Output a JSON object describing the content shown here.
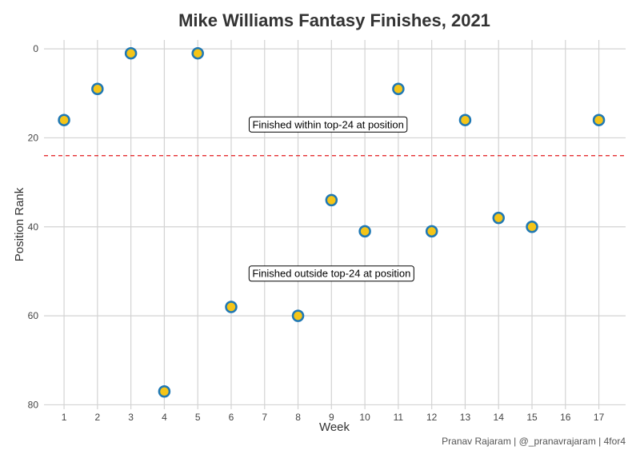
{
  "chart_data": {
    "type": "scatter",
    "title": "Mike Williams Fantasy Finishes, 2021",
    "xlabel": "Week",
    "ylabel": "Position Rank",
    "caption": "Pranav Rajaram | @_pranavrajaram | 4for4",
    "x_ticks": [
      1,
      2,
      3,
      4,
      5,
      6,
      7,
      8,
      9,
      10,
      11,
      12,
      13,
      14,
      15,
      16,
      17
    ],
    "y_ticks": [
      0,
      20,
      40,
      60,
      80
    ],
    "xlim": [
      0.4,
      17.8
    ],
    "ylim": [
      81,
      -2
    ],
    "y_reversed": true,
    "grid": true,
    "threshold": {
      "value": 24,
      "color": "#e31a1c",
      "style": "dashed"
    },
    "point_fill": "#f5c518",
    "point_stroke": "#1f78b4",
    "points": [
      {
        "x": 1,
        "y": 16
      },
      {
        "x": 2,
        "y": 9
      },
      {
        "x": 3,
        "y": 1
      },
      {
        "x": 4,
        "y": 77
      },
      {
        "x": 5,
        "y": 1
      },
      {
        "x": 6,
        "y": 58
      },
      {
        "x": 8,
        "y": 60
      },
      {
        "x": 9,
        "y": 34
      },
      {
        "x": 10,
        "y": 41
      },
      {
        "x": 11,
        "y": 9
      },
      {
        "x": 12,
        "y": 41
      },
      {
        "x": 13,
        "y": 16
      },
      {
        "x": 14,
        "y": 38
      },
      {
        "x": 15,
        "y": 40
      },
      {
        "x": 17,
        "y": 16
      }
    ],
    "annotations": [
      {
        "text": "Finished within top-24 at position",
        "x": 8.9,
        "y": 17
      },
      {
        "text": "Finished outside top-24 at position",
        "x": 9,
        "y": 50.5
      }
    ]
  }
}
